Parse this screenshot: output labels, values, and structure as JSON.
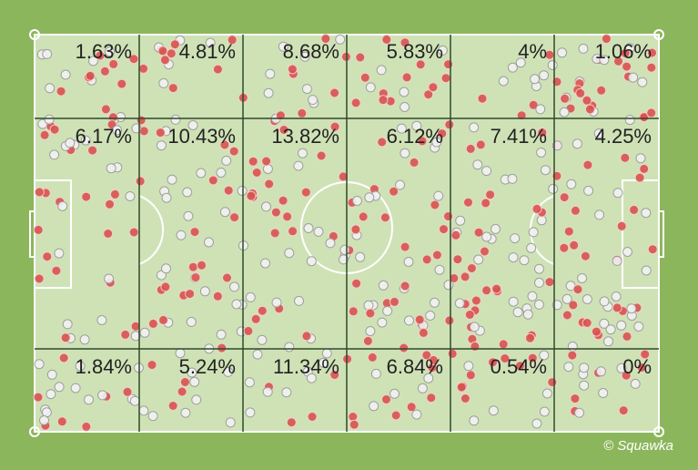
{
  "zones": {
    "rows": [
      [
        "1.63%",
        "4.81%",
        "8.68%",
        "5.83%",
        "4%",
        "1.06%"
      ],
      [
        "6.17%",
        "10.43%",
        "13.82%",
        "6.12%",
        "7.41%",
        "4.25%"
      ],
      [
        "1.84%",
        "5.24%",
        "11.34%",
        "6.84%",
        "0.54%",
        "0%"
      ]
    ]
  },
  "watermark": "© Squawka"
}
